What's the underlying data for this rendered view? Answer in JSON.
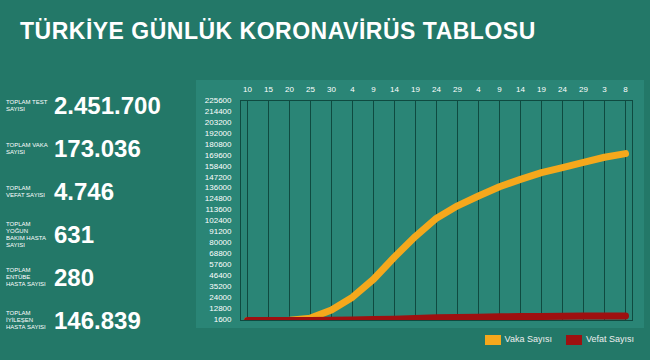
{
  "chart_data": {
    "type": "line",
    "title": "TÜRKİYE GÜNLÜK KORONAVİRÜS TABLOSU",
    "categories": [
      "10",
      "15",
      "20",
      "25",
      "30",
      "4",
      "9",
      "14",
      "19",
      "24",
      "29",
      "4",
      "9",
      "14",
      "19",
      "24",
      "29",
      "3",
      "8"
    ],
    "series": [
      {
        "name": "Vaka Sayısı",
        "color": "#f5a81c",
        "values": [
          0,
          18,
          359,
          2433,
          10827,
          23934,
          42282,
          65111,
          86306,
          104912,
          117589,
          127659,
          137115,
          144749,
          151615,
          156827,
          162120,
          167410,
          171121
        ]
      },
      {
        "name": "Vefat Sayısı",
        "color": "#9e1010",
        "values": [
          0,
          0,
          4,
          59,
          168,
          501,
          908,
          1403,
          2017,
          2706,
          3174,
          3461,
          3739,
          4007,
          4199,
          4340,
          4489,
          4609,
          4729
        ]
      }
    ],
    "ylim": [
      0,
      225600
    ],
    "yticks": [
      1600,
      12800,
      24000,
      35200,
      46400,
      57600,
      68800,
      80000,
      91200,
      102400,
      113600,
      124800,
      136000,
      147200,
      158400,
      169600,
      180800,
      192000,
      203200,
      214400,
      225600
    ],
    "grid": true,
    "legend": "bottom-right"
  },
  "stats": [
    {
      "label": "TOPLAM TEST SAYISI",
      "value": "2.451.700"
    },
    {
      "label": "TOPLAM VAKA SAYISI",
      "value": "173.036"
    },
    {
      "label": "TOPLAM VEFAT SAYISI",
      "value": "4.746"
    },
    {
      "label": "TOPLAM YOĞUN BAKIM HASTA SAYISI",
      "value": "631"
    },
    {
      "label": "TOPLAM ENTÜBE HASTA SAYISI",
      "value": "280"
    },
    {
      "label": "TOPLAM İYİLEŞEN HASTA SAYISI",
      "value": "146.839"
    }
  ]
}
